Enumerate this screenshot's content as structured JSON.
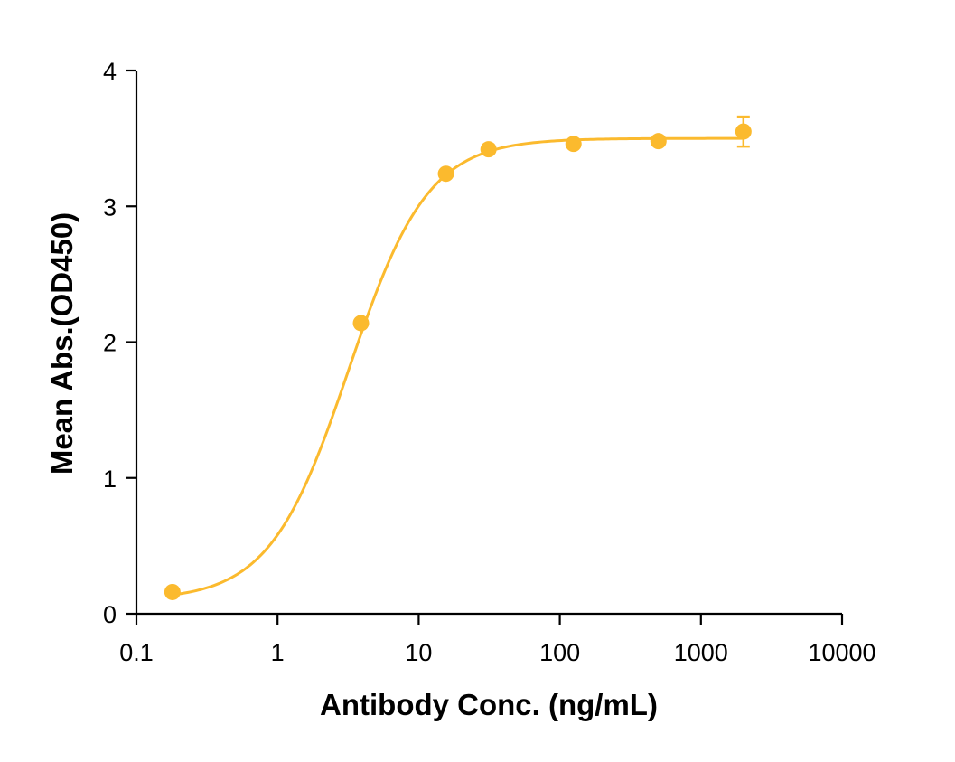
{
  "colors": {
    "series": "#FBBA2E",
    "axis": "#000000"
  },
  "chart_data": {
    "type": "scatter",
    "title": "",
    "xlabel": "Antibody Conc. (ng/mL)",
    "ylabel": "Mean Abs.(OD450)",
    "xscale": "log",
    "xlim": [
      0.1,
      10000
    ],
    "ylim": [
      0,
      4
    ],
    "grid": false,
    "legend": "none",
    "xticks": [
      0.1,
      1,
      10,
      100,
      1000,
      10000
    ],
    "xtick_labels": [
      "0.1",
      "1",
      "10",
      "100",
      "1000",
      "10000"
    ],
    "yticks": [
      0,
      1,
      2,
      3,
      4
    ],
    "ytick_labels": [
      "0",
      "1",
      "2",
      "3",
      "4"
    ],
    "series": [
      {
        "x": [
          0.18,
          3.9,
          15.6,
          31.25,
          125,
          500,
          2000
        ],
        "y": [
          0.16,
          2.14,
          3.24,
          3.42,
          3.46,
          3.48,
          3.55
        ],
        "error": [
          0.01,
          0.02,
          0.02,
          0.02,
          0.02,
          0.02,
          0.11
        ],
        "fit": {
          "model": "4PL",
          "bottom": 0.1,
          "top": 3.5,
          "ec50": 3.2,
          "hill": 1.55
        }
      }
    ]
  }
}
